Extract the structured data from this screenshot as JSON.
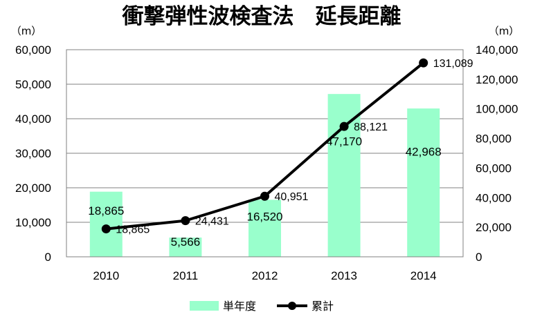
{
  "chart_data": {
    "type": "bar+line",
    "title": "衝撃弾性波検査法　延長距離",
    "categories": [
      "2010",
      "2011",
      "2012",
      "2013",
      "2014"
    ],
    "left_axis": {
      "unit": "（m）",
      "min": 0,
      "max": 60000,
      "ticks": [
        "0",
        "10,000",
        "20,000",
        "30,000",
        "40,000",
        "50,000",
        "60,000"
      ]
    },
    "right_axis": {
      "unit": "（m）",
      "min": 0,
      "max": 140000,
      "ticks": [
        "0",
        "20,000",
        "40,000",
        "60,000",
        "80,000",
        "100,000",
        "120,000",
        "140,000"
      ]
    },
    "series": [
      {
        "name": "単年度",
        "kind": "bar",
        "axis": "left",
        "color": "#99ffcc",
        "values": [
          18865,
          5566,
          16520,
          47170,
          42968
        ],
        "labels": [
          "18,865",
          "5,566",
          "16,520",
          "47,170",
          "42,968"
        ]
      },
      {
        "name": "累計",
        "kind": "line",
        "axis": "right",
        "color": "#000000",
        "values": [
          18865,
          24431,
          40951,
          88121,
          131089
        ],
        "labels": [
          "18,865",
          "24,431",
          "40,951",
          "88,121",
          "131,089"
        ]
      }
    ],
    "grid": true,
    "legend": "bottom"
  }
}
